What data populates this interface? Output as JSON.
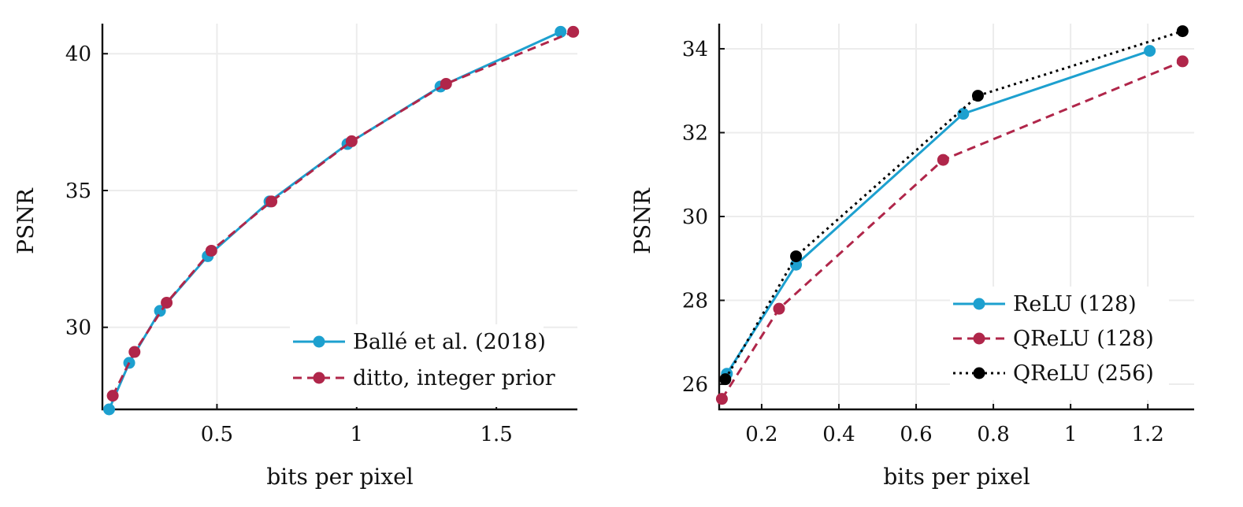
{
  "chart_data": [
    {
      "type": "line",
      "title": "",
      "xlabel": "bits per pixel",
      "ylabel": "PSNR",
      "xlim": [
        0.09,
        1.79
      ],
      "ylim": [
        27,
        41.1
      ],
      "xticks": [
        0.5,
        1,
        1.5
      ],
      "xtick_labels": [
        "0.5",
        "1",
        "1.5"
      ],
      "yticks": [
        30,
        35,
        40
      ],
      "ytick_labels": [
        "30",
        "35",
        "40"
      ],
      "grid": true,
      "legend_position": "bottom-right",
      "series": [
        {
          "name": "Ballé et al. (2018)",
          "color": "#1da0cf",
          "dash": "solid",
          "marker": "circle",
          "x": [
            0.114,
            0.186,
            0.296,
            0.467,
            0.688,
            0.967,
            1.3,
            1.73
          ],
          "y": [
            27.0,
            28.7,
            30.6,
            32.6,
            34.6,
            36.7,
            38.8,
            40.8
          ]
        },
        {
          "name": "ditto, integer prior",
          "color": "#b0264a",
          "dash": "dashed",
          "marker": "circle",
          "x": [
            0.127,
            0.205,
            0.32,
            0.48,
            0.695,
            0.982,
            1.32,
            1.775
          ],
          "y": [
            27.5,
            29.1,
            30.9,
            32.8,
            34.6,
            36.8,
            38.9,
            40.8
          ]
        }
      ]
    },
    {
      "type": "line",
      "title": "",
      "xlabel": "bits per pixel",
      "ylabel": "PSNR",
      "xlim": [
        0.09,
        1.32
      ],
      "ylim": [
        25.4,
        34.6
      ],
      "xticks": [
        0.2,
        0.4,
        0.6,
        0.8,
        1,
        1.2
      ],
      "xtick_labels": [
        "0.2",
        "0.4",
        "0.6",
        "0.8",
        "1",
        "1.2"
      ],
      "yticks": [
        26,
        28,
        30,
        32,
        34
      ],
      "ytick_labels": [
        "26",
        "28",
        "30",
        "32",
        "34"
      ],
      "grid": true,
      "legend_position": "bottom-right",
      "series": [
        {
          "name": "ReLU (128)",
          "color": "#1da0cf",
          "dash": "solid",
          "marker": "circle",
          "x": [
            0.11,
            0.289,
            0.722,
            1.205
          ],
          "y": [
            26.25,
            28.85,
            32.45,
            33.95
          ]
        },
        {
          "name": "QReLU (128)",
          "color": "#b0264a",
          "dash": "dashed",
          "marker": "circle",
          "x": [
            0.097,
            0.245,
            0.67,
            1.29
          ],
          "y": [
            25.65,
            27.8,
            31.35,
            33.7
          ]
        },
        {
          "name": "QReLU (256)",
          "color": "#000000",
          "dash": "dotted",
          "marker": "circle",
          "x": [
            0.106,
            0.289,
            0.76,
            1.29
          ],
          "y": [
            26.12,
            29.05,
            32.88,
            34.42
          ]
        }
      ]
    }
  ]
}
